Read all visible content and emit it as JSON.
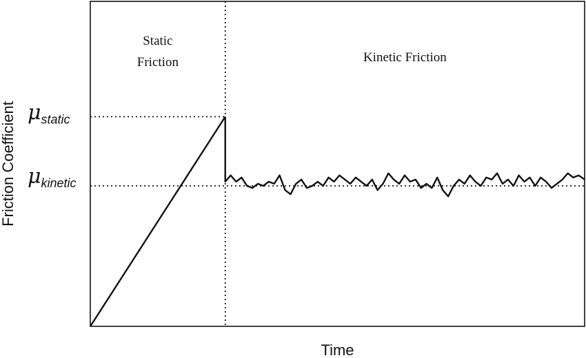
{
  "chart_data": {
    "type": "line",
    "title": "",
    "xlabel": "Time",
    "ylabel": "Friction Coefficient",
    "regions": [
      {
        "label_lines": [
          "Static",
          "Friction"
        ]
      },
      {
        "label_lines": [
          "Kinetic Friction"
        ]
      }
    ],
    "y_markers": [
      {
        "symbol": "μ",
        "subscript": "static",
        "value": 1.0
      },
      {
        "symbol": "μ",
        "subscript": "kinetic",
        "value": 0.67
      }
    ],
    "xlim": [
      0,
      100
    ],
    "ylim": [
      0,
      1.55
    ],
    "transition_x": 27.3,
    "static_ramp": {
      "x": [
        0,
        27.3
      ],
      "y": [
        0,
        1.0
      ]
    },
    "kinetic_series": {
      "x": [
        27.3,
        27.3,
        28.4,
        29.5,
        30.6,
        31.7,
        32.8,
        33.9,
        35.0,
        36.1,
        37.2,
        38.3,
        39.4,
        40.5,
        41.6,
        42.7,
        43.8,
        44.9,
        46.0,
        47.1,
        48.2,
        49.3,
        50.4,
        51.5,
        52.6,
        53.7,
        54.8,
        55.9,
        57.0,
        58.1,
        59.2,
        60.3,
        61.4,
        62.5,
        63.6,
        64.7,
        65.8,
        66.9,
        68.0,
        69.1,
        70.2,
        71.3,
        72.4,
        73.5,
        74.6,
        75.7,
        76.8,
        77.9,
        79.0,
        80.1,
        81.2,
        82.3,
        83.4,
        84.5,
        85.6,
        86.7,
        87.8,
        88.9,
        90.0,
        91.1,
        92.2,
        93.3,
        94.4,
        95.5,
        96.6,
        97.7,
        98.8,
        100.0
      ],
      "y": [
        1.0,
        0.69,
        0.72,
        0.69,
        0.71,
        0.67,
        0.66,
        0.68,
        0.67,
        0.69,
        0.68,
        0.72,
        0.65,
        0.63,
        0.68,
        0.7,
        0.66,
        0.67,
        0.69,
        0.67,
        0.71,
        0.69,
        0.72,
        0.7,
        0.68,
        0.71,
        0.69,
        0.67,
        0.7,
        0.65,
        0.68,
        0.73,
        0.7,
        0.68,
        0.72,
        0.69,
        0.7,
        0.66,
        0.68,
        0.66,
        0.71,
        0.65,
        0.62,
        0.67,
        0.7,
        0.68,
        0.72,
        0.69,
        0.67,
        0.71,
        0.7,
        0.73,
        0.68,
        0.7,
        0.67,
        0.72,
        0.69,
        0.71,
        0.67,
        0.71,
        0.69,
        0.66,
        0.68,
        0.7,
        0.73,
        0.71,
        0.72,
        0.7
      ]
    },
    "grid": false
  }
}
